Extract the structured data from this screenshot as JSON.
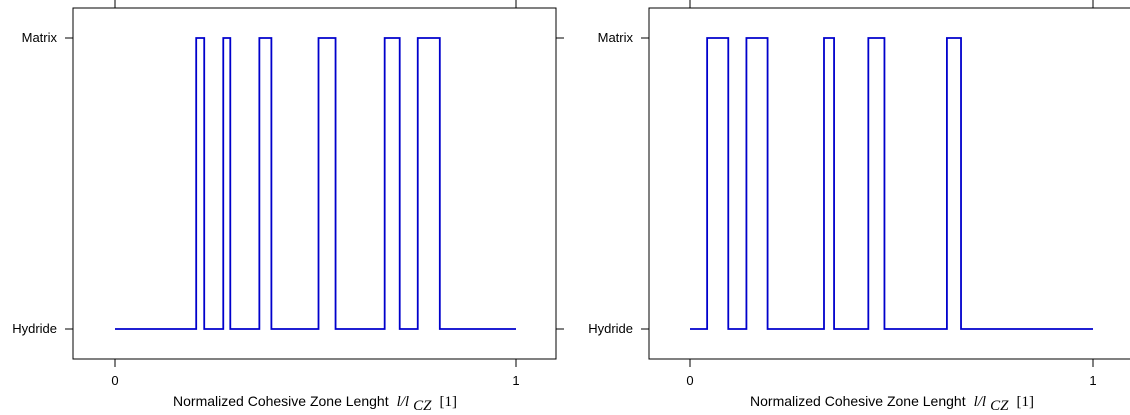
{
  "chart_data": [
    {
      "type": "line",
      "xlabel": {
        "text": "Normalized Cohesive Zone Lenght",
        "math": "l/l",
        "math_sub": "CZ",
        "unit": "[1]"
      },
      "ylabel": "",
      "x_ticks": [
        "0",
        "1"
      ],
      "y_ticks": [
        "Hydride",
        "Matrix"
      ],
      "xlim": [
        0,
        1
      ],
      "ylim": [
        0,
        1
      ],
      "series": [
        {
          "color": "#0000cc",
          "x": [
            0,
            0.2025,
            0.2025,
            0.2225,
            0.2225,
            0.27,
            0.27,
            0.2875,
            0.2875,
            0.36,
            0.36,
            0.39,
            0.39,
            0.5075,
            0.5075,
            0.55,
            0.55,
            0.6725,
            0.6725,
            0.71,
            0.71,
            0.755,
            0.755,
            0.81,
            0.81,
            1.0
          ],
          "y": [
            0,
            0,
            1,
            1,
            0,
            0,
            1,
            1,
            0,
            0,
            1,
            1,
            0,
            0,
            1,
            1,
            0,
            0,
            1,
            1,
            0,
            0,
            1,
            1,
            0,
            0
          ]
        }
      ]
    },
    {
      "type": "line",
      "xlabel": {
        "text": "Normalized Cohesive Zone Lenght",
        "math": "l/l",
        "math_sub": "CZ",
        "unit": "[1]"
      },
      "ylabel": "",
      "x_ticks": [
        "0",
        "1"
      ],
      "y_ticks": [
        "Hydride",
        "Matrix"
      ],
      "xlim": [
        0,
        1
      ],
      "ylim": [
        0,
        1
      ],
      "series": [
        {
          "color": "#0000cc",
          "x": [
            0,
            0.0425,
            0.0425,
            0.095,
            0.095,
            0.14,
            0.14,
            0.1925,
            0.1925,
            0.3325,
            0.3325,
            0.3575,
            0.3575,
            0.4425,
            0.4425,
            0.4825,
            0.4825,
            0.6375,
            0.6375,
            0.6725,
            0.6725,
            1.0
          ],
          "y": [
            0,
            0,
            1,
            1,
            0,
            0,
            1,
            1,
            0,
            0,
            1,
            1,
            0,
            0,
            1,
            1,
            0,
            0,
            1,
            1,
            0,
            0
          ]
        }
      ]
    }
  ]
}
